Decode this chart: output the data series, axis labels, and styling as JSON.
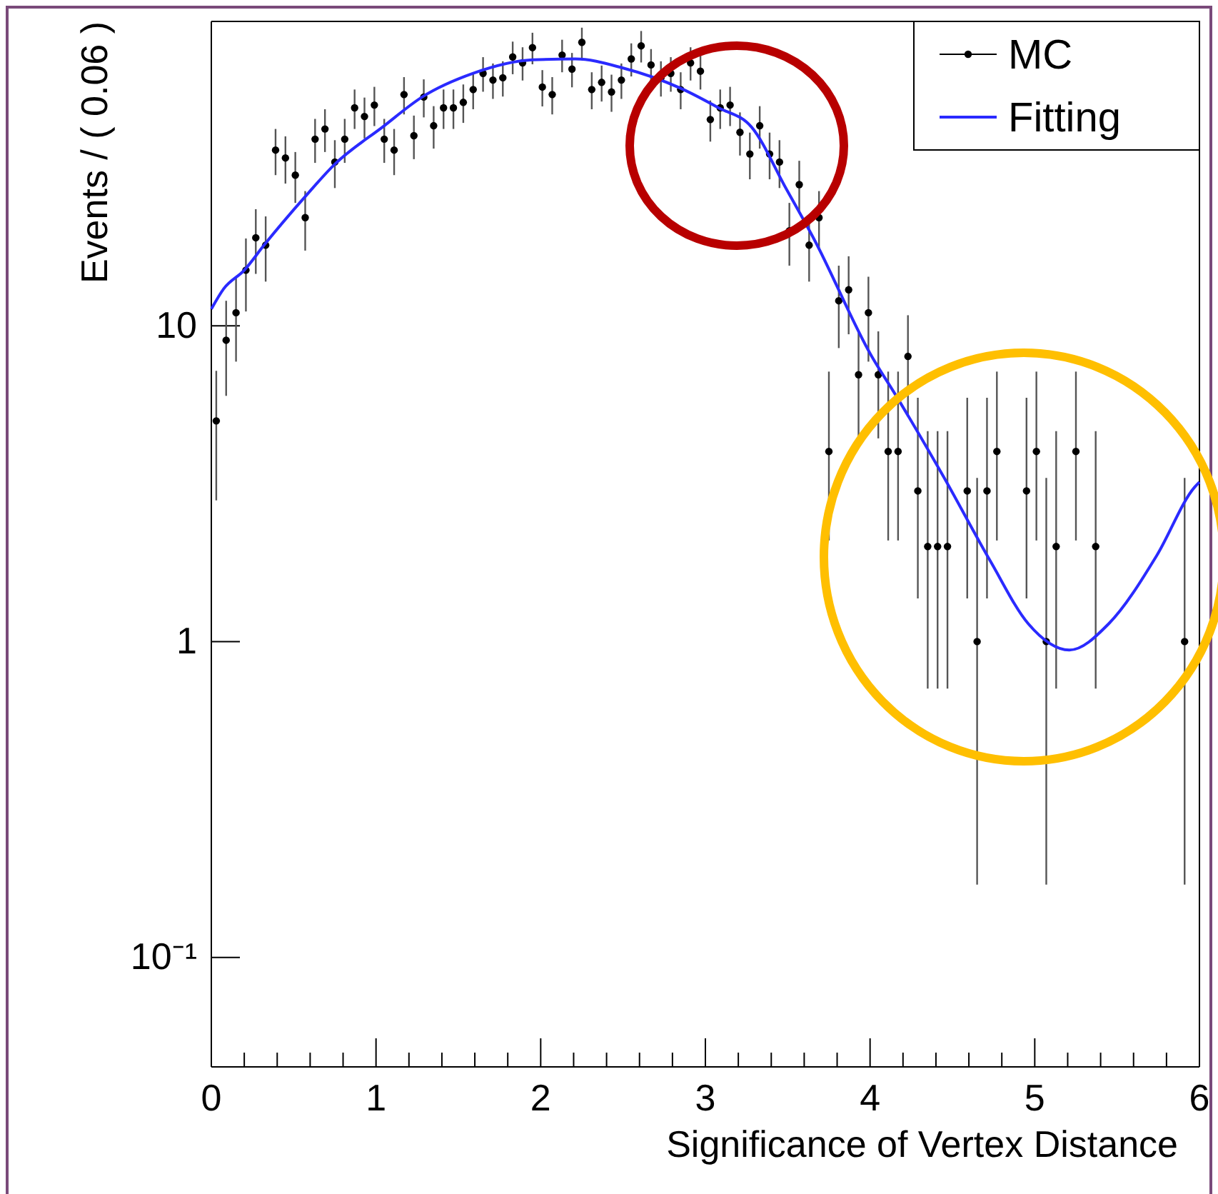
{
  "chart_data": {
    "type": "scatter",
    "xlabel": "Significance of Vertex Distance",
    "ylabel": "Events / ( 0.06 )",
    "log": "y",
    "legend": "top right",
    "xlim": [
      0,
      6
    ],
    "ylim": [
      0.045,
      92
    ],
    "xticks": [
      0,
      {
        "value": 0.2,
        "label": null
      },
      {
        "value": 0.4,
        "label": null
      },
      {
        "value": 0.6,
        "label": null
      },
      {
        "value": 0.8,
        "label": null
      },
      1,
      {
        "value": 1.2,
        "label": null
      },
      {
        "value": 1.4,
        "label": null
      },
      {
        "value": 1.6,
        "label": null
      },
      {
        "value": 1.8,
        "label": null
      },
      2,
      {
        "value": 2.2,
        "label": null
      },
      {
        "value": 2.4,
        "label": null
      },
      {
        "value": 2.6,
        "label": null
      },
      {
        "value": 2.8,
        "label": null
      },
      3,
      {
        "value": 3.2,
        "label": null
      },
      {
        "value": 3.4,
        "label": null
      },
      {
        "value": 3.6,
        "label": null
      },
      {
        "value": 3.8,
        "label": null
      },
      4,
      {
        "value": 4.2,
        "label": null
      },
      {
        "value": 4.4,
        "label": null
      },
      {
        "value": 4.6,
        "label": null
      },
      {
        "value": 4.8,
        "label": null
      },
      5,
      {
        "value": 5.2,
        "label": null
      },
      {
        "value": 5.4,
        "label": null
      },
      {
        "value": 5.6,
        "label": null
      },
      {
        "value": 5.8,
        "label": null
      },
      6
    ],
    "yticks": [
      {
        "value": 0.1,
        "label": "10⁻¹"
      },
      1,
      10
    ],
    "series": [
      {
        "name": "MC",
        "color": "#000000",
        "marker": "circle",
        "x": [
          0.03,
          0.09,
          0.15,
          0.21,
          0.27,
          0.33,
          0.39,
          0.45,
          0.51,
          0.57,
          0.63,
          0.69,
          0.75,
          0.81,
          0.87,
          0.93,
          0.99,
          1.05,
          1.11,
          1.17,
          1.23,
          1.29,
          1.35,
          1.41,
          1.47,
          1.53,
          1.59,
          1.65,
          1.71,
          1.77,
          1.83,
          1.89,
          1.95,
          2.01,
          2.07,
          2.13,
          2.19,
          2.25,
          2.31,
          2.37,
          2.43,
          2.49,
          2.55,
          2.61,
          2.67,
          2.73,
          2.79,
          2.85,
          2.91,
          2.97,
          3.03,
          3.09,
          3.15,
          3.21,
          3.27,
          3.33,
          3.39,
          3.45,
          3.51,
          3.57,
          3.63,
          3.69,
          3.75,
          3.81,
          3.87,
          3.93,
          3.99,
          4.05,
          4.11,
          4.17,
          4.23,
          4.29,
          4.35,
          4.41,
          4.47,
          4.59,
          4.65,
          4.71,
          4.77,
          4.95,
          5.01,
          5.07,
          5.13,
          5.25,
          5.37,
          5.91
        ],
        "values": [
          5,
          9,
          11,
          15,
          19,
          18,
          36,
          34,
          30,
          22,
          39,
          42,
          33,
          39,
          49,
          46,
          50,
          39,
          36,
          54,
          40,
          53,
          43,
          49,
          49,
          51,
          56,
          63,
          60,
          61,
          71,
          68,
          76,
          57,
          54,
          72,
          65,
          79,
          56,
          59,
          55,
          60,
          70,
          77,
          67,
          61,
          63,
          56,
          68,
          64,
          45,
          49,
          50,
          41,
          35,
          43,
          35,
          33,
          20,
          28,
          18,
          22,
          4,
          12,
          13,
          7,
          11,
          7,
          4,
          4,
          8,
          3,
          2,
          2,
          2,
          3,
          1,
          3,
          4,
          3,
          4,
          1,
          2,
          4,
          2,
          1
        ],
        "errors": [
          2.2,
          3,
          3.3,
          3.9,
          4.4,
          4.2,
          6,
          5.8,
          5.5,
          4.7,
          6.2,
          6.5,
          5.7,
          6.2,
          7,
          6.8,
          7.1,
          6.2,
          6,
          7.3,
          6.3,
          7.3,
          6.6,
          7,
          7,
          7.1,
          7.5,
          7.9,
          7.7,
          7.8,
          8.4,
          8.2,
          8.7,
          7.5,
          7.3,
          8.5,
          8.1,
          8.9,
          7.5,
          7.7,
          7.4,
          7.7,
          8.4,
          8.8,
          8.2,
          7.8,
          7.9,
          7.5,
          8.2,
          8,
          6.7,
          7,
          7.1,
          6.4,
          5.9,
          6.6,
          5.9,
          5.7,
          4.5,
          5.3,
          4.2,
          4.7,
          [
            2.09,
            7.16
          ],
          3.5,
          3.6,
          2.6,
          3.3,
          2.6,
          [
            2.09,
            7.16
          ],
          [
            2.09,
            7.16
          ],
          2.8,
          [
            1.37,
            5.92
          ],
          [
            0.71,
            4.64
          ],
          [
            0.71,
            4.64
          ],
          [
            0.71,
            4.64
          ],
          [
            1.37,
            5.92
          ],
          [
            0.17,
            3.3
          ],
          [
            1.37,
            5.92
          ],
          [
            2.09,
            7.16
          ],
          [
            1.37,
            5.92
          ],
          [
            2.09,
            7.16
          ],
          [
            0.17,
            3.3
          ],
          [
            0.71,
            4.64
          ],
          [
            2.09,
            7.16
          ],
          [
            0.71,
            4.64
          ],
          [
            0.17,
            3.3
          ]
        ]
      },
      {
        "name": "Fitting",
        "type": "line",
        "color": "#2a2aff",
        "x": [
          0,
          0.075,
          0.2,
          0.32,
          0.56,
          0.75,
          1.04,
          1.28,
          1.59,
          1.95,
          2.21,
          2.5,
          2.85,
          3.08,
          3.28,
          3.49,
          3.66,
          4.01,
          4.15,
          4.44,
          4.73,
          4.96,
          5.21,
          5.45,
          5.74,
          5.97,
          6
        ],
        "values": [
          11.3,
          13.1,
          15,
          18,
          25.3,
          32.5,
          42.6,
          53,
          63,
          69.5,
          70,
          65.5,
          56.5,
          49,
          42.6,
          27.2,
          18.8,
          8,
          6.1,
          3.37,
          1.8,
          1.14,
          0.94,
          1.14,
          1.87,
          3.08,
          3.2
        ]
      }
    ]
  }
}
